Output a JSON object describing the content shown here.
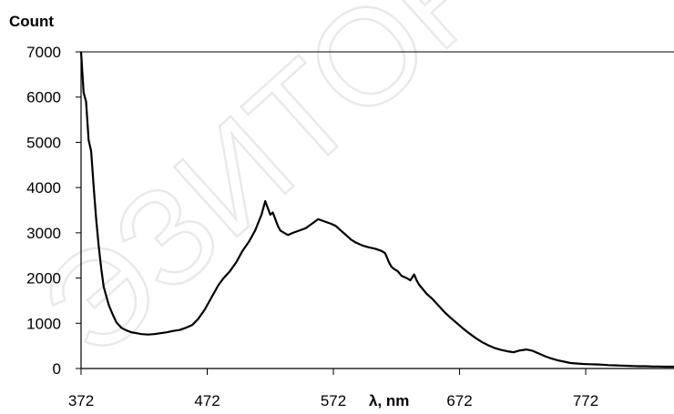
{
  "chart_data": {
    "type": "line",
    "title": "",
    "ylabel": "Count",
    "xlabel": "λ, nm",
    "xlim": [
      372,
      842
    ],
    "ylim": [
      0,
      7000
    ],
    "x_ticks": [
      372,
      472,
      572,
      672,
      772
    ],
    "y_ticks": [
      0,
      1000,
      2000,
      3000,
      4000,
      5000,
      6000,
      7000
    ],
    "grid": "top-border-only",
    "legend": "none",
    "line_color": "#000000",
    "series": [
      {
        "x": [
          372,
          374,
          376,
          378,
          380,
          382,
          384,
          386,
          388,
          390,
          392,
          394,
          397,
          400,
          404,
          408,
          412,
          416,
          420,
          425,
          430,
          435,
          440,
          445,
          450,
          455,
          460,
          465,
          470,
          473,
          477,
          481,
          485,
          490,
          495,
          500,
          505,
          510,
          515,
          518,
          520,
          522,
          524,
          526,
          528,
          530,
          533,
          536,
          540,
          545,
          550,
          555,
          560,
          565,
          570,
          574,
          578,
          582,
          586,
          590,
          595,
          600,
          605,
          610,
          613,
          616,
          618,
          620,
          623,
          626,
          630,
          633,
          636,
          638,
          640,
          643,
          646,
          650,
          655,
          660,
          665,
          670,
          675,
          680,
          685,
          690,
          695,
          700,
          705,
          710,
          715,
          720,
          725,
          730,
          735,
          740,
          745,
          750,
          755,
          760,
          765,
          770,
          775,
          780,
          785,
          790,
          795,
          800,
          805,
          810,
          815,
          820,
          825,
          830,
          835,
          842
        ],
        "y": [
          7000,
          6100,
          5900,
          5050,
          4800,
          4000,
          3300,
          2700,
          2200,
          1800,
          1600,
          1400,
          1200,
          1020,
          900,
          840,
          800,
          780,
          760,
          750,
          760,
          780,
          800,
          830,
          850,
          900,
          960,
          1100,
          1300,
          1450,
          1650,
          1850,
          2000,
          2150,
          2350,
          2600,
          2800,
          3050,
          3400,
          3700,
          3550,
          3400,
          3450,
          3300,
          3150,
          3050,
          3000,
          2950,
          3000,
          3050,
          3100,
          3200,
          3300,
          3250,
          3200,
          3150,
          3050,
          2950,
          2850,
          2780,
          2720,
          2680,
          2650,
          2600,
          2550,
          2350,
          2250,
          2200,
          2150,
          2050,
          2000,
          1950,
          2080,
          1950,
          1850,
          1750,
          1650,
          1550,
          1400,
          1250,
          1120,
          1000,
          880,
          770,
          670,
          580,
          510,
          450,
          410,
          380,
          360,
          400,
          420,
          390,
          330,
          270,
          220,
          180,
          150,
          120,
          110,
          100,
          95,
          90,
          85,
          75,
          70,
          65,
          60,
          55,
          50,
          50,
          45,
          45,
          40,
          40
        ]
      }
    ]
  },
  "watermark": {
    "text": "ЭЗИТОР",
    "color": "#d8d8d8"
  }
}
